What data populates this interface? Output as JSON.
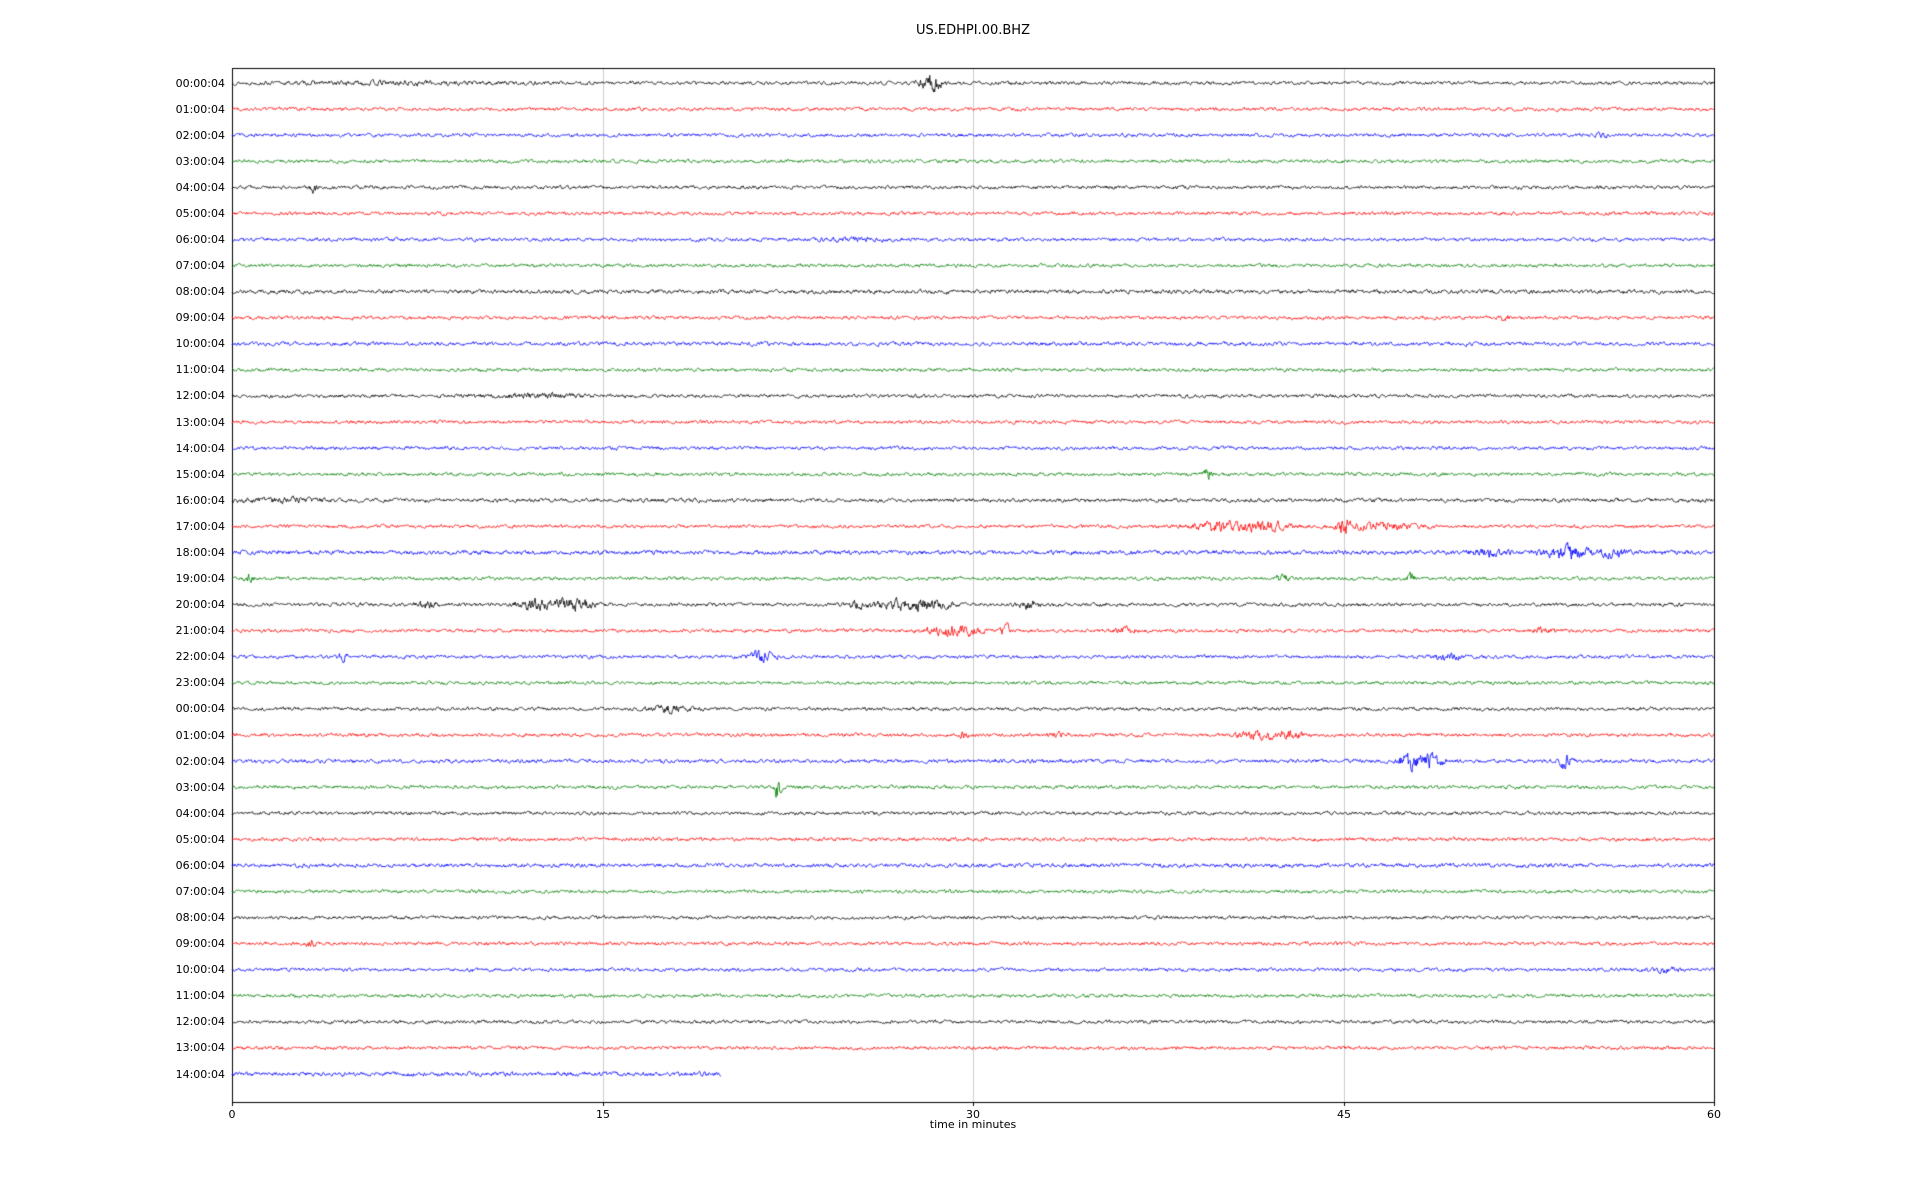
{
  "title": "US.EDHPI.00.BHZ",
  "chart_data": {
    "type": "line",
    "subtype": "seismogram-dayplot",
    "title": "US.EDHPI.00.BHZ",
    "xlabel": "time in minutes",
    "xlim": [
      0,
      60
    ],
    "xticks": [
      0,
      15,
      30,
      45,
      60
    ],
    "grid": "vertical gridlines at 15, 30 and 45 minutes",
    "legend_position": "none",
    "colors": {
      "black": "#000000",
      "red": "#ff0000",
      "blue": "#0000ff",
      "green": "#008000",
      "grid": "#cccccc",
      "frame": "#000000"
    },
    "color_cycle": [
      "black",
      "red",
      "blue",
      "green"
    ],
    "rows": [
      {
        "label": "00:00:04",
        "color": "black",
        "end": 60,
        "b": 1,
        "events": [
          [
            28.3,
            5,
            0.3
          ],
          [
            7,
            0.6,
            3
          ]
        ]
      },
      {
        "label": "01:00:04",
        "color": "red",
        "end": 60,
        "b": 1,
        "events": []
      },
      {
        "label": "02:00:04",
        "color": "blue",
        "end": 60,
        "b": 1,
        "events": [
          [
            55.5,
            1.5,
            0.15
          ]
        ]
      },
      {
        "label": "03:00:04",
        "color": "green",
        "end": 60,
        "b": 1,
        "events": []
      },
      {
        "label": "04:00:04",
        "color": "black",
        "end": 60,
        "b": 1,
        "events": [
          [
            3.3,
            3,
            0.1
          ]
        ]
      },
      {
        "label": "05:00:04",
        "color": "red",
        "end": 60,
        "b": 1,
        "events": []
      },
      {
        "label": "06:00:04",
        "color": "blue",
        "end": 60,
        "b": 1,
        "events": [
          [
            25,
            0.8,
            1
          ]
        ]
      },
      {
        "label": "07:00:04",
        "color": "green",
        "end": 60,
        "b": 1,
        "events": []
      },
      {
        "label": "08:00:04",
        "color": "black",
        "end": 60,
        "b": 1.15,
        "events": []
      },
      {
        "label": "09:00:04",
        "color": "red",
        "end": 60,
        "b": 1,
        "events": [
          [
            51.5,
            2,
            0.12
          ]
        ]
      },
      {
        "label": "10:00:04",
        "color": "blue",
        "end": 60,
        "b": 1.1,
        "events": []
      },
      {
        "label": "11:00:04",
        "color": "green",
        "end": 60,
        "b": 1,
        "events": []
      },
      {
        "label": "12:00:04",
        "color": "black",
        "end": 60,
        "b": 1,
        "events": [
          [
            12.5,
            1,
            1.5
          ]
        ]
      },
      {
        "label": "13:00:04",
        "color": "red",
        "end": 60,
        "b": 1,
        "events": []
      },
      {
        "label": "14:00:04",
        "color": "blue",
        "end": 60,
        "b": 1,
        "events": []
      },
      {
        "label": "15:00:04",
        "color": "green",
        "end": 60,
        "b": 1,
        "events": [
          [
            39.5,
            3.5,
            0.1
          ]
        ]
      },
      {
        "label": "16:00:04",
        "color": "black",
        "end": 60,
        "b": 1.1,
        "events": [
          [
            2,
            1,
            1
          ]
        ]
      },
      {
        "label": "17:00:04",
        "color": "red",
        "end": 60,
        "b": 1,
        "events": [
          [
            40,
            2.5,
            0.8
          ],
          [
            41.8,
            2.5,
            0.6
          ],
          [
            45,
            6,
            0.15
          ],
          [
            46.5,
            1.5,
            1.2
          ]
        ]
      },
      {
        "label": "18:00:04",
        "color": "blue",
        "end": 60,
        "b": 1.2,
        "events": [
          [
            50.8,
            1.5,
            0.5
          ],
          [
            54,
            3,
            0.6
          ],
          [
            55.8,
            1.8,
            0.5
          ]
        ]
      },
      {
        "label": "19:00:04",
        "color": "green",
        "end": 60,
        "b": 1,
        "events": [
          [
            0.7,
            2.5,
            0.12
          ],
          [
            42.5,
            2.2,
            0.2
          ],
          [
            47.7,
            3,
            0.12
          ]
        ]
      },
      {
        "label": "20:00:04",
        "color": "black",
        "end": 60,
        "b": 1,
        "events": [
          [
            7.9,
            2,
            0.3
          ],
          [
            12.2,
            2.5,
            0.5
          ],
          [
            13.8,
            3,
            0.6
          ],
          [
            25.3,
            1.5,
            0.3
          ],
          [
            27,
            2.5,
            0.8
          ],
          [
            28.3,
            2.5,
            0.5
          ],
          [
            32.3,
            1.8,
            0.3
          ]
        ]
      },
      {
        "label": "21:00:04",
        "color": "red",
        "end": 60,
        "b": 1,
        "events": [
          [
            28.8,
            2.5,
            0.5
          ],
          [
            29.8,
            2,
            0.4
          ],
          [
            31.3,
            5,
            0.1
          ],
          [
            36.2,
            1.5,
            0.3
          ],
          [
            53,
            1.2,
            0.3
          ]
        ]
      },
      {
        "label": "22:00:04",
        "color": "blue",
        "end": 60,
        "b": 1,
        "events": [
          [
            4.5,
            2.5,
            0.12
          ],
          [
            21.4,
            3,
            0.35
          ],
          [
            49.2,
            1.5,
            0.4
          ]
        ]
      },
      {
        "label": "23:00:04",
        "color": "green",
        "end": 60,
        "b": 1,
        "events": []
      },
      {
        "label": "00:00:04",
        "color": "black",
        "end": 60,
        "b": 1,
        "events": [
          [
            17.8,
            2,
            0.5
          ]
        ]
      },
      {
        "label": "01:00:04",
        "color": "red",
        "end": 60,
        "b": 1,
        "events": [
          [
            29.6,
            2.5,
            0.12
          ],
          [
            33.4,
            1.5,
            0.2
          ],
          [
            41.6,
            2.2,
            0.5
          ],
          [
            42.8,
            2,
            0.4
          ]
        ]
      },
      {
        "label": "02:00:04",
        "color": "blue",
        "end": 60,
        "b": 1.1,
        "events": [
          [
            47.6,
            4.5,
            0.25
          ],
          [
            48.4,
            3.5,
            0.4
          ],
          [
            54,
            4.5,
            0.15
          ]
        ]
      },
      {
        "label": "03:00:04",
        "color": "green",
        "end": 60,
        "b": 1,
        "events": [
          [
            22.1,
            6,
            0.1
          ]
        ]
      },
      {
        "label": "04:00:04",
        "color": "black",
        "end": 60,
        "b": 1,
        "events": []
      },
      {
        "label": "05:00:04",
        "color": "red",
        "end": 60,
        "b": 1.05,
        "events": []
      },
      {
        "label": "06:00:04",
        "color": "blue",
        "end": 60,
        "b": 1.15,
        "events": []
      },
      {
        "label": "07:00:04",
        "color": "green",
        "end": 60,
        "b": 1,
        "events": []
      },
      {
        "label": "08:00:04",
        "color": "black",
        "end": 60,
        "b": 1,
        "events": []
      },
      {
        "label": "09:00:04",
        "color": "red",
        "end": 60,
        "b": 1,
        "events": [
          [
            3.2,
            2.5,
            0.1
          ]
        ]
      },
      {
        "label": "10:00:04",
        "color": "blue",
        "end": 60,
        "b": 1,
        "events": [
          [
            58,
            1,
            0.4
          ]
        ]
      },
      {
        "label": "11:00:04",
        "color": "green",
        "end": 60,
        "b": 1,
        "events": []
      },
      {
        "label": "12:00:04",
        "color": "black",
        "end": 60,
        "b": 1,
        "events": []
      },
      {
        "label": "13:00:04",
        "color": "red",
        "end": 60,
        "b": 1,
        "events": []
      },
      {
        "label": "14:00:04",
        "color": "blue",
        "end": 19.8,
        "b": 1.25,
        "events": []
      }
    ]
  }
}
